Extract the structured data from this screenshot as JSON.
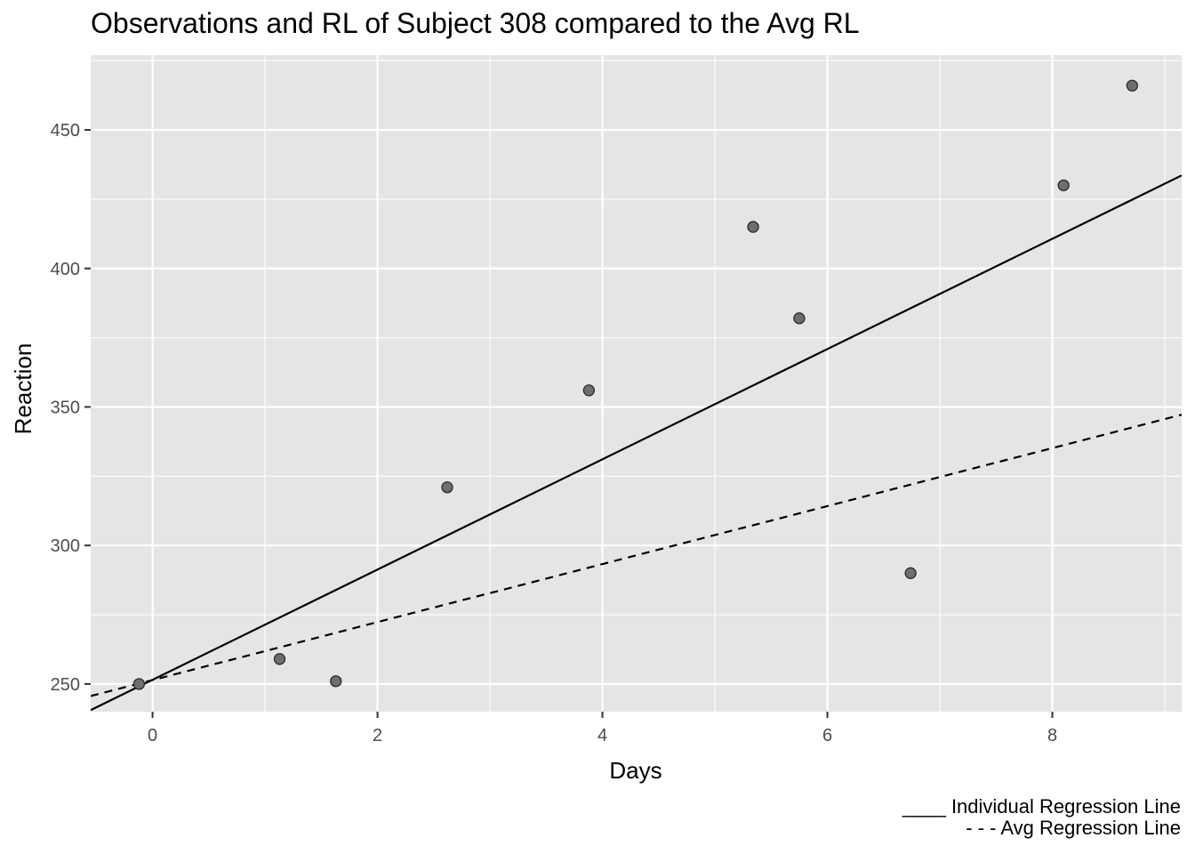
{
  "chart_data": {
    "type": "scatter",
    "title": "Observations and RL of Subject 308 compared to the Avg RL",
    "xlabel": "Days",
    "ylabel": "Reaction",
    "xlim": [
      -0.55,
      9.15
    ],
    "ylim": [
      240,
      477
    ],
    "x_ticks": [
      0,
      2,
      4,
      6,
      8
    ],
    "y_ticks": [
      250,
      300,
      350,
      400,
      450
    ],
    "grid": true,
    "points": [
      {
        "x": -0.12,
        "y": 250
      },
      {
        "x": 1.13,
        "y": 259
      },
      {
        "x": 1.63,
        "y": 251
      },
      {
        "x": 2.62,
        "y": 321
      },
      {
        "x": 3.88,
        "y": 356
      },
      {
        "x": 5.34,
        "y": 415
      },
      {
        "x": 5.75,
        "y": 382
      },
      {
        "x": 6.74,
        "y": 290
      },
      {
        "x": 8.1,
        "y": 430
      },
      {
        "x": 8.71,
        "y": 466
      }
    ],
    "lines": [
      {
        "style": "solid",
        "intercept": 251.5,
        "slope": 19.9
      },
      {
        "style": "dashed",
        "intercept": 251.4,
        "slope": 10.47
      }
    ],
    "captions": [
      "____ Individual Regression Line",
      "- - - Avg Regression Line"
    ],
    "colors": {
      "panel_background": "#e5e5e5",
      "grid": "#ffffff",
      "point_fill": "#6e6e6e",
      "point_stroke": "#2a2a2a",
      "line": "#000000",
      "axis_text": "#4d4d4d"
    }
  }
}
